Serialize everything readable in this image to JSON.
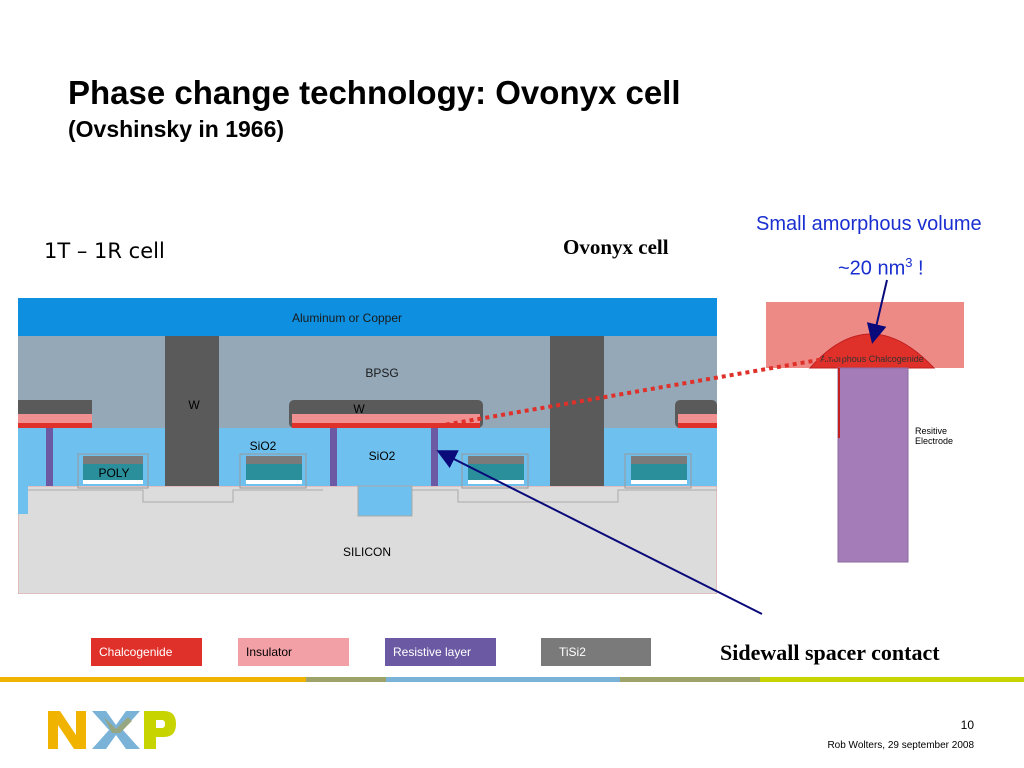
{
  "slide": {
    "title": "Phase change technology: Ovonyx cell",
    "subtitle": "(Ovshinsky in 1966)",
    "cell_label": "1T – 1R cell",
    "ovonyx_label": "Ovonyx cell",
    "annotation_line1": "Small amorphous volume",
    "annotation_line2_prefix": "~20 nm",
    "annotation_line2_sup": "3",
    "annotation_line2_suffix": " !",
    "sidewall_label": "Sidewall spacer contact",
    "page_number": "10",
    "footer": "Rob Wolters, 29 september 2008"
  },
  "diagram": {
    "metal_label": "Aluminum or Copper",
    "bpsg_label": "BPSG",
    "w_label_1": "W",
    "w_label_2": "W",
    "sio2_label_1": "SiO2",
    "sio2_label_2": "SiO2",
    "poly_label": "POLY",
    "silicon_label": "SILICON"
  },
  "detail": {
    "chalcogenide_label": "Amorphous Chalcogenide",
    "electrode_line1": "Resitive",
    "electrode_line2": "Electrode"
  },
  "legend": [
    {
      "label": "Chalcogenide",
      "color": "#e0302a"
    },
    {
      "label": "Insulator",
      "color": "#f2a0a6"
    },
    {
      "label": "Resistive layer",
      "color": "#6b5aa3"
    },
    {
      "label": "TiSi2",
      "color": "#7a7a7a"
    }
  ],
  "colors": {
    "metal": "#0e8fe0",
    "bpsg": "#94a8b8",
    "tungsten": "#5a5a5a",
    "sio2": "#6ec0ee",
    "silicon": "#dcdcdc",
    "annotation": "#1a2fd0",
    "arrow": "#0a0a7a"
  }
}
